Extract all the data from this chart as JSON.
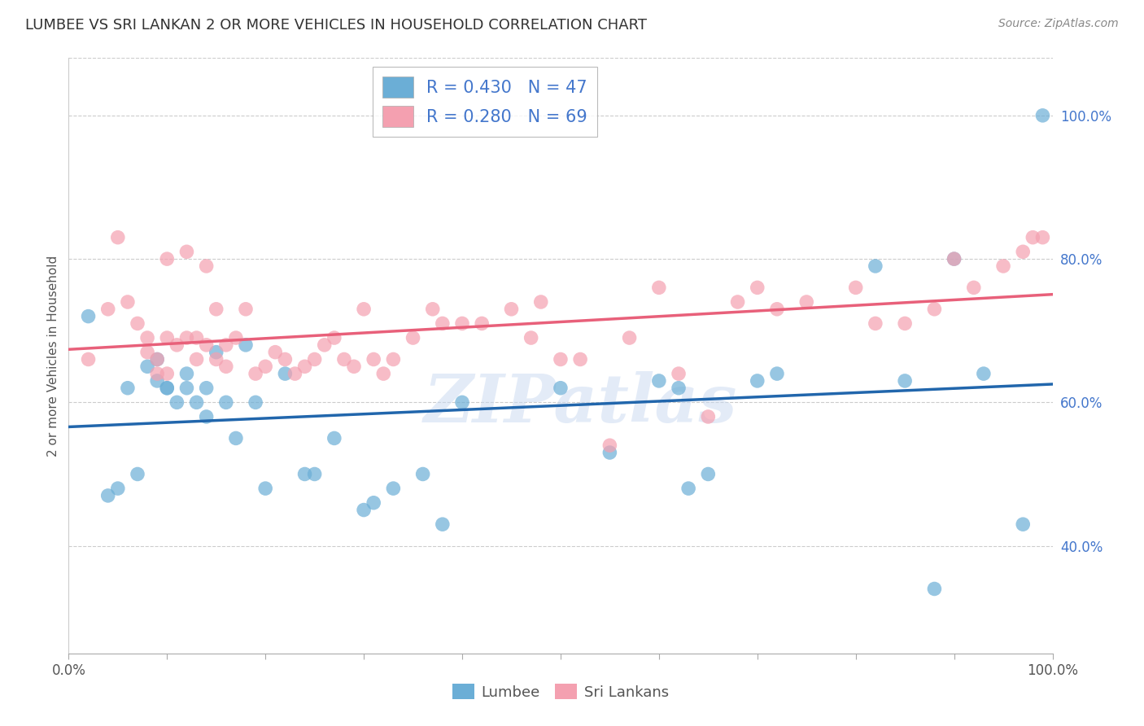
{
  "title": "LUMBEE VS SRI LANKAN 2 OR MORE VEHICLES IN HOUSEHOLD CORRELATION CHART",
  "source": "Source: ZipAtlas.com",
  "ylabel": "2 or more Vehicles in Household",
  "xlim": [
    0.0,
    1.0
  ],
  "ylim": [
    0.25,
    1.08
  ],
  "y_ticks_right": [
    0.4,
    0.6,
    0.8,
    1.0
  ],
  "y_tick_labels_right": [
    "40.0%",
    "60.0%",
    "80.0%",
    "100.0%"
  ],
  "lumbee_color": "#6baed6",
  "sri_lankan_color": "#f4a0b0",
  "lumbee_line_color": "#2166ac",
  "sri_lankan_line_color": "#e8607a",
  "R_lumbee": 0.43,
  "N_lumbee": 47,
  "R_sri_lankan": 0.28,
  "N_sri_lankan": 69,
  "watermark": "ZIPatlas",
  "lumbee_x": [
    0.02,
    0.04,
    0.05,
    0.06,
    0.07,
    0.08,
    0.09,
    0.09,
    0.1,
    0.1,
    0.11,
    0.12,
    0.12,
    0.13,
    0.14,
    0.14,
    0.15,
    0.16,
    0.17,
    0.18,
    0.19,
    0.2,
    0.22,
    0.24,
    0.25,
    0.27,
    0.3,
    0.31,
    0.33,
    0.36,
    0.38,
    0.4,
    0.5,
    0.55,
    0.6,
    0.62,
    0.63,
    0.65,
    0.7,
    0.72,
    0.82,
    0.85,
    0.88,
    0.9,
    0.93,
    0.97,
    0.99
  ],
  "lumbee_y": [
    0.72,
    0.47,
    0.48,
    0.62,
    0.5,
    0.65,
    0.63,
    0.66,
    0.62,
    0.62,
    0.6,
    0.64,
    0.62,
    0.6,
    0.62,
    0.58,
    0.67,
    0.6,
    0.55,
    0.68,
    0.6,
    0.48,
    0.64,
    0.5,
    0.5,
    0.55,
    0.45,
    0.46,
    0.48,
    0.5,
    0.43,
    0.6,
    0.62,
    0.53,
    0.63,
    0.62,
    0.48,
    0.5,
    0.63,
    0.64,
    0.79,
    0.63,
    0.34,
    0.8,
    0.64,
    0.43,
    1.0
  ],
  "sri_lankan_x": [
    0.02,
    0.04,
    0.05,
    0.06,
    0.07,
    0.08,
    0.08,
    0.09,
    0.09,
    0.1,
    0.1,
    0.11,
    0.12,
    0.12,
    0.13,
    0.13,
    0.14,
    0.15,
    0.15,
    0.16,
    0.16,
    0.17,
    0.18,
    0.19,
    0.2,
    0.21,
    0.22,
    0.23,
    0.24,
    0.25,
    0.26,
    0.27,
    0.28,
    0.29,
    0.3,
    0.31,
    0.32,
    0.33,
    0.35,
    0.37,
    0.38,
    0.4,
    0.42,
    0.45,
    0.47,
    0.48,
    0.5,
    0.52,
    0.55,
    0.57,
    0.6,
    0.62,
    0.65,
    0.68,
    0.7,
    0.72,
    0.75,
    0.8,
    0.82,
    0.85,
    0.88,
    0.9,
    0.92,
    0.95,
    0.97,
    0.98,
    0.99,
    0.1,
    0.14
  ],
  "sri_lankan_y": [
    0.66,
    0.73,
    0.83,
    0.74,
    0.71,
    0.69,
    0.67,
    0.66,
    0.64,
    0.64,
    0.69,
    0.68,
    0.81,
    0.69,
    0.69,
    0.66,
    0.68,
    0.66,
    0.73,
    0.68,
    0.65,
    0.69,
    0.73,
    0.64,
    0.65,
    0.67,
    0.66,
    0.64,
    0.65,
    0.66,
    0.68,
    0.69,
    0.66,
    0.65,
    0.73,
    0.66,
    0.64,
    0.66,
    0.69,
    0.73,
    0.71,
    0.71,
    0.71,
    0.73,
    0.69,
    0.74,
    0.66,
    0.66,
    0.54,
    0.69,
    0.76,
    0.64,
    0.58,
    0.74,
    0.76,
    0.73,
    0.74,
    0.76,
    0.71,
    0.71,
    0.73,
    0.8,
    0.76,
    0.79,
    0.81,
    0.83,
    0.83,
    0.8,
    0.79
  ]
}
